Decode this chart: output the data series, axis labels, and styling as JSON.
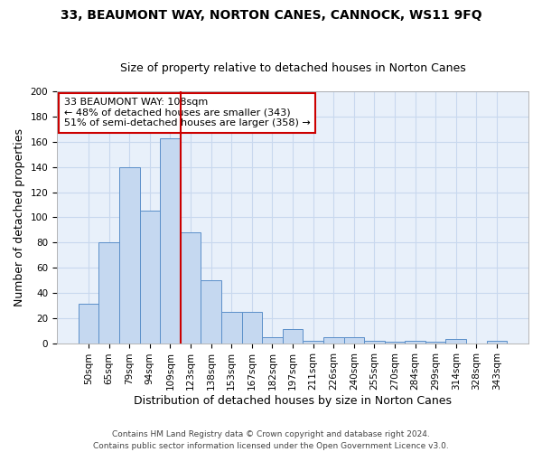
{
  "title": "33, BEAUMONT WAY, NORTON CANES, CANNOCK, WS11 9FQ",
  "subtitle": "Size of property relative to detached houses in Norton Canes",
  "xlabel": "Distribution of detached houses by size in Norton Canes",
  "ylabel": "Number of detached properties",
  "categories": [
    "50sqm",
    "65sqm",
    "79sqm",
    "94sqm",
    "109sqm",
    "123sqm",
    "138sqm",
    "153sqm",
    "167sqm",
    "182sqm",
    "197sqm",
    "211sqm",
    "226sqm",
    "240sqm",
    "255sqm",
    "270sqm",
    "284sqm",
    "299sqm",
    "314sqm",
    "328sqm",
    "343sqm"
  ],
  "values": [
    31,
    80,
    140,
    105,
    163,
    88,
    50,
    25,
    25,
    5,
    11,
    2,
    5,
    5,
    2,
    1,
    2,
    1,
    3,
    0,
    2
  ],
  "bar_color": "#c5d8f0",
  "bar_edge_color": "#5b8fc9",
  "vline_x": 4.5,
  "vline_color": "#cc0000",
  "annotation_text": "33 BEAUMONT WAY: 108sqm\n← 48% of detached houses are smaller (343)\n51% of semi-detached houses are larger (358) →",
  "annotation_box_color": "white",
  "annotation_box_edge": "#cc0000",
  "ylim": [
    0,
    200
  ],
  "yticks": [
    0,
    20,
    40,
    60,
    80,
    100,
    120,
    140,
    160,
    180,
    200
  ],
  "grid_color": "#c8d8ee",
  "background_color": "#e8f0fa",
  "footer_text": "Contains HM Land Registry data © Crown copyright and database right 2024.\nContains public sector information licensed under the Open Government Licence v3.0.",
  "title_fontsize": 10,
  "subtitle_fontsize": 9,
  "xlabel_fontsize": 9,
  "ylabel_fontsize": 9,
  "tick_fontsize": 7.5,
  "footer_fontsize": 6.5,
  "annotation_fontsize": 8
}
